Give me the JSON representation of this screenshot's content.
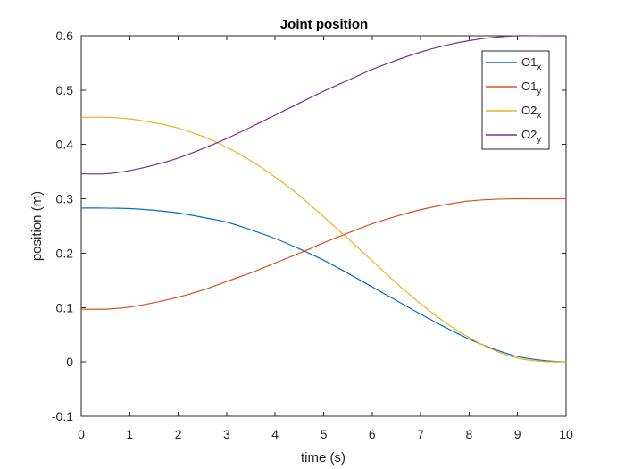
{
  "chart_data": {
    "type": "line",
    "title": "Joint position",
    "xlabel": "time (s)",
    "ylabel": "position (m)",
    "xlim": [
      0,
      10
    ],
    "ylim": [
      -0.1,
      0.6
    ],
    "xticks": [
      0,
      1,
      2,
      3,
      4,
      5,
      6,
      7,
      8,
      9,
      10
    ],
    "yticks": [
      -0.1,
      0,
      0.1,
      0.2,
      0.3,
      0.4,
      0.5,
      0.6
    ],
    "xtick_labels": [
      "0",
      "1",
      "2",
      "3",
      "4",
      "5",
      "6",
      "7",
      "8",
      "9",
      "10"
    ],
    "ytick_labels": [
      "-0.1",
      "0",
      "0.1",
      "0.2",
      "0.3",
      "0.4",
      "0.5",
      "0.6"
    ],
    "grid": false,
    "legend_position": "top-right",
    "x": [
      0,
      0.5,
      1,
      1.5,
      2,
      2.5,
      3,
      3.5,
      4,
      4.5,
      5,
      5.5,
      6,
      6.5,
      7,
      7.5,
      8,
      8.5,
      9,
      9.5,
      10
    ],
    "series": [
      {
        "name": "O1",
        "subscript": "x",
        "color": "#0072BD",
        "values": [
          0.283,
          0.283,
          0.282,
          0.279,
          0.274,
          0.266,
          0.257,
          0.243,
          0.227,
          0.208,
          0.187,
          0.163,
          0.138,
          0.113,
          0.088,
          0.064,
          0.042,
          0.024,
          0.01,
          0.003,
          0.0
        ]
      },
      {
        "name": "O1",
        "subscript": "y",
        "color": "#D95319",
        "values": [
          0.097,
          0.097,
          0.101,
          0.109,
          0.119,
          0.132,
          0.148,
          0.164,
          0.182,
          0.2,
          0.219,
          0.237,
          0.254,
          0.268,
          0.28,
          0.289,
          0.296,
          0.299,
          0.3,
          0.3,
          0.3
        ]
      },
      {
        "name": "O2",
        "subscript": "x",
        "color": "#EDB120",
        "values": [
          0.45,
          0.45,
          0.447,
          0.44,
          0.43,
          0.415,
          0.395,
          0.37,
          0.34,
          0.306,
          0.267,
          0.227,
          0.186,
          0.145,
          0.107,
          0.073,
          0.045,
          0.022,
          0.007,
          0.001,
          0.0
        ]
      },
      {
        "name": "O2",
        "subscript": "y",
        "color": "#7E2F8E",
        "values": [
          0.346,
          0.346,
          0.352,
          0.362,
          0.375,
          0.392,
          0.411,
          0.432,
          0.454,
          0.476,
          0.498,
          0.518,
          0.538,
          0.555,
          0.57,
          0.582,
          0.591,
          0.597,
          0.6,
          0.6,
          0.6
        ]
      }
    ]
  }
}
